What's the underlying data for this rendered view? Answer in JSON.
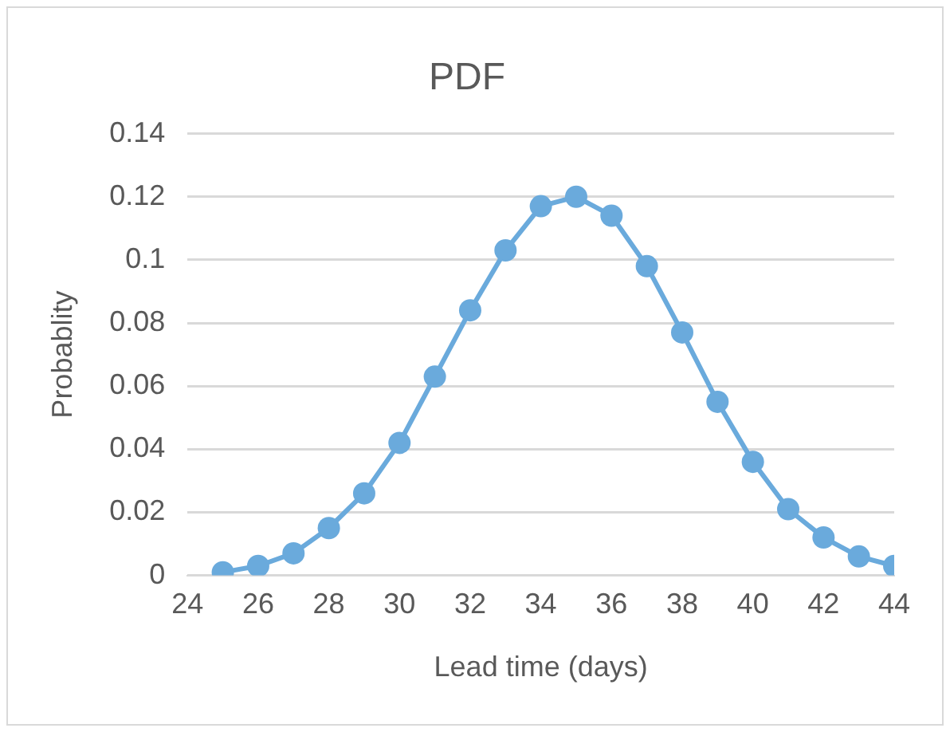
{
  "chart_data": {
    "type": "line",
    "title": "PDF",
    "xlabel": "Lead time (days)",
    "ylabel": "Probablity",
    "x": [
      25,
      26,
      27,
      28,
      29,
      30,
      31,
      32,
      33,
      34,
      35,
      36,
      37,
      38,
      39,
      40,
      41,
      42,
      43,
      44
    ],
    "series": [
      {
        "color": "#6aaadc",
        "values": [
          0.001,
          0.003,
          0.007,
          0.015,
          0.026,
          0.042,
          0.063,
          0.084,
          0.103,
          0.117,
          0.12,
          0.114,
          0.098,
          0.077,
          0.055,
          0.036,
          0.021,
          0.012,
          0.006,
          0.003
        ]
      }
    ],
    "xlim": [
      24,
      44
    ],
    "xticks": [
      24,
      26,
      28,
      30,
      32,
      34,
      36,
      38,
      40,
      42,
      44
    ],
    "ylim": [
      0,
      0.14
    ],
    "yticks": [
      0,
      0.02,
      0.04,
      0.06,
      0.08,
      0.1,
      0.12,
      0.14
    ],
    "grid": "y",
    "legend": false,
    "marker": "circle",
    "line_style": "solid"
  }
}
